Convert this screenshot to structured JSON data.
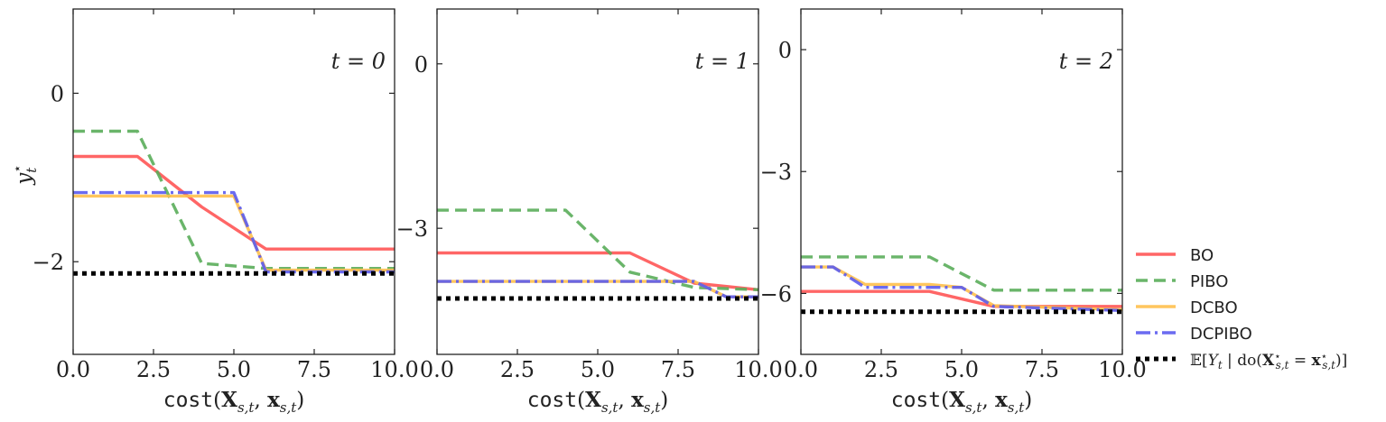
{
  "chart_data": [
    {
      "type": "line",
      "panel_title": "t = 0",
      "xlabel": "cost(X_{s,t}, x_{s,t})",
      "ylabel": "y_t^⋆",
      "xlim": [
        0,
        10
      ],
      "ylim": [
        -3.1,
        1.0
      ],
      "xticks": [
        "0.0",
        "2.5",
        "5.0",
        "7.5",
        "10.0"
      ],
      "yticks": [
        {
          "value": 0,
          "label": "0"
        },
        {
          "value": -2,
          "label": "−2"
        }
      ],
      "grid": false,
      "series": [
        {
          "name": "BO",
          "x": [
            0,
            2,
            4,
            6,
            10
          ],
          "y": [
            -0.75,
            -0.75,
            -1.35,
            -1.85,
            -1.85
          ]
        },
        {
          "name": "PIBO",
          "x": [
            0,
            2,
            4,
            6,
            10
          ],
          "y": [
            -0.45,
            -0.45,
            -2.02,
            -2.08,
            -2.08
          ]
        },
        {
          "name": "DCBO",
          "x": [
            0,
            5,
            6,
            10
          ],
          "y": [
            -1.22,
            -1.22,
            -2.1,
            -2.1
          ]
        },
        {
          "name": "DCPIBO",
          "x": [
            0,
            5,
            6,
            10
          ],
          "y": [
            -1.18,
            -1.18,
            -2.12,
            -2.12
          ]
        },
        {
          "name": "E[Y_t | do(X*_{s,t} = x*_{s,t})]",
          "x": [
            0,
            10
          ],
          "y": [
            -2.14,
            -2.14
          ]
        }
      ]
    },
    {
      "type": "line",
      "panel_title": "t = 1",
      "xlabel": "cost(X_{s,t}, x_{s,t})",
      "xlim": [
        0,
        10
      ],
      "ylim": [
        -5.3,
        1.0
      ],
      "xticks": [
        "0.0",
        "2.5",
        "5.0",
        "7.5",
        "10.0"
      ],
      "yticks": [
        {
          "value": 0,
          "label": "0"
        },
        {
          "value": -3,
          "label": "−3"
        }
      ],
      "grid": false,
      "series": [
        {
          "name": "BO",
          "x": [
            0,
            6,
            8,
            10
          ],
          "y": [
            -3.45,
            -3.45,
            -4.0,
            -4.12
          ]
        },
        {
          "name": "PIBO",
          "x": [
            0,
            4,
            6,
            8,
            10
          ],
          "y": [
            -2.67,
            -2.67,
            -3.8,
            -4.08,
            -4.12
          ]
        },
        {
          "name": "DCBO",
          "x": [
            0,
            8,
            9,
            10
          ],
          "y": [
            -3.97,
            -3.97,
            -4.25,
            -4.25
          ]
        },
        {
          "name": "DCPIBO",
          "x": [
            0,
            8,
            9,
            10
          ],
          "y": [
            -3.97,
            -3.97,
            -4.25,
            -4.25
          ]
        },
        {
          "name": "E[Y_t | do(X*_{s,t} = x*_{s,t})]",
          "x": [
            0,
            10
          ],
          "y": [
            -4.28,
            -4.28
          ]
        }
      ]
    },
    {
      "type": "line",
      "panel_title": "t = 2",
      "xlabel": "cost(X_{s,t}, x_{s,t})",
      "xlim": [
        0,
        10
      ],
      "ylim": [
        -7.5,
        1.0
      ],
      "xticks": [
        "0.0",
        "2.5",
        "5.0",
        "7.5",
        "10.0"
      ],
      "yticks": [
        {
          "value": 0,
          "label": "0"
        },
        {
          "value": -3,
          "label": "−3"
        },
        {
          "value": -6,
          "label": "−6"
        }
      ],
      "grid": false,
      "series": [
        {
          "name": "BO",
          "x": [
            0,
            4,
            6,
            10
          ],
          "y": [
            -5.95,
            -5.95,
            -6.32,
            -6.32
          ]
        },
        {
          "name": "PIBO",
          "x": [
            0,
            4,
            6,
            10
          ],
          "y": [
            -5.1,
            -5.1,
            -5.92,
            -5.92
          ]
        },
        {
          "name": "DCBO",
          "x": [
            0,
            1,
            2,
            4,
            5,
            6,
            10
          ],
          "y": [
            -5.35,
            -5.35,
            -5.78,
            -5.78,
            -5.85,
            -6.3,
            -6.4
          ]
        },
        {
          "name": "DCPIBO",
          "x": [
            0,
            1,
            2,
            5,
            6,
            10
          ],
          "y": [
            -5.35,
            -5.35,
            -5.85,
            -5.85,
            -6.32,
            -6.42
          ]
        },
        {
          "name": "E[Y_t | do(X*_{s,t} = x*_{s,t})]",
          "x": [
            0,
            10
          ],
          "y": [
            -6.45,
            -6.45
          ]
        }
      ]
    }
  ],
  "legend": {
    "placement": "right",
    "entries": [
      {
        "label": "BO",
        "color": "#ff5555",
        "style": "solid"
      },
      {
        "label": "PIBO",
        "color": "#5aad5a",
        "style": "dashed"
      },
      {
        "label": "DCBO",
        "color": "#ffc04d",
        "style": "solid"
      },
      {
        "label": "DCPIBO",
        "color": "#5b5bf0",
        "style": "dashdot"
      },
      {
        "label": "𝔼[Y_t | do(X⋆_{s,t} = x⋆_{s,t})]",
        "color": "#000000",
        "style": "dotted"
      }
    ]
  },
  "colors": {
    "BO": "#ff5555",
    "PIBO": "#5aad5a",
    "DCBO": "#ffc04d",
    "DCPIBO": "#5b5bf0",
    "optimum": "#000000"
  }
}
